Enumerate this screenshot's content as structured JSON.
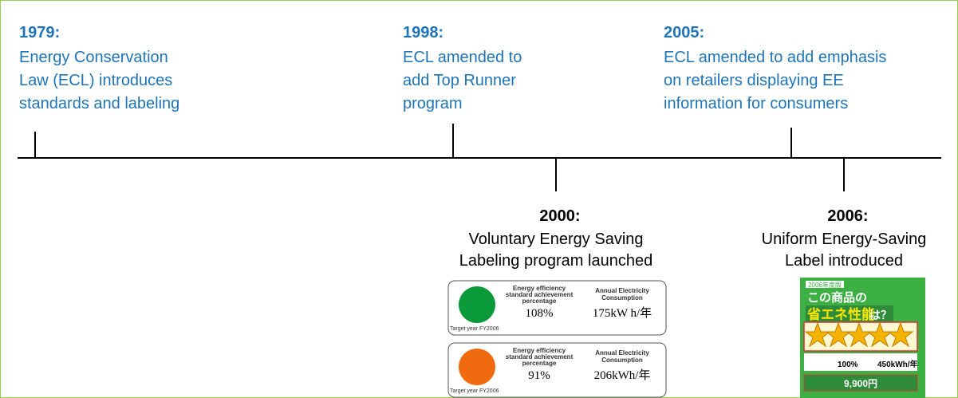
{
  "events_above": [
    {
      "year": "1979:",
      "text": [
        "Energy Conservation",
        "Law (ECL) introduces",
        "standards  and labeling"
      ]
    },
    {
      "year": "1998:",
      "text": [
        "ECL amended to",
        "add Top Runner",
        "program"
      ]
    },
    {
      "year": "2005:",
      "text": [
        "ECL  amended to add emphasis",
        "on retailers displaying EE",
        "information for consumers"
      ]
    }
  ],
  "events_below": [
    {
      "year": "2000:",
      "text": [
        "Voluntary Energy Saving",
        "Labeling program launched"
      ]
    },
    {
      "year": "2006:",
      "text": [
        "Uniform Energy-Saving",
        "Label introduced"
      ]
    }
  ],
  "voluntary_labels": [
    {
      "heading_left": [
        "Energy efficiency",
        "standard achievement",
        "percentage"
      ],
      "heading_right": [
        "Annual Electricity",
        "Consumption"
      ],
      "percentage": "108%",
      "consumption": "175kW h/年",
      "target": "Target year FY2006"
    },
    {
      "heading_left": [
        "Energy efficiency",
        "standard achievement",
        "percentage"
      ],
      "heading_right": [
        "Annual Electricity",
        "Consumption"
      ],
      "percentage": "91%",
      "consumption": "206kWh/年",
      "target": "Target year FY2006"
    }
  ],
  "uniform_label": {
    "edition": "2006年度版",
    "line1": "この商品の",
    "line2": "省エネ性能",
    "line3": "は？",
    "percentage": "100%",
    "consumption": "450kWh/年",
    "cost": "9,900円"
  }
}
